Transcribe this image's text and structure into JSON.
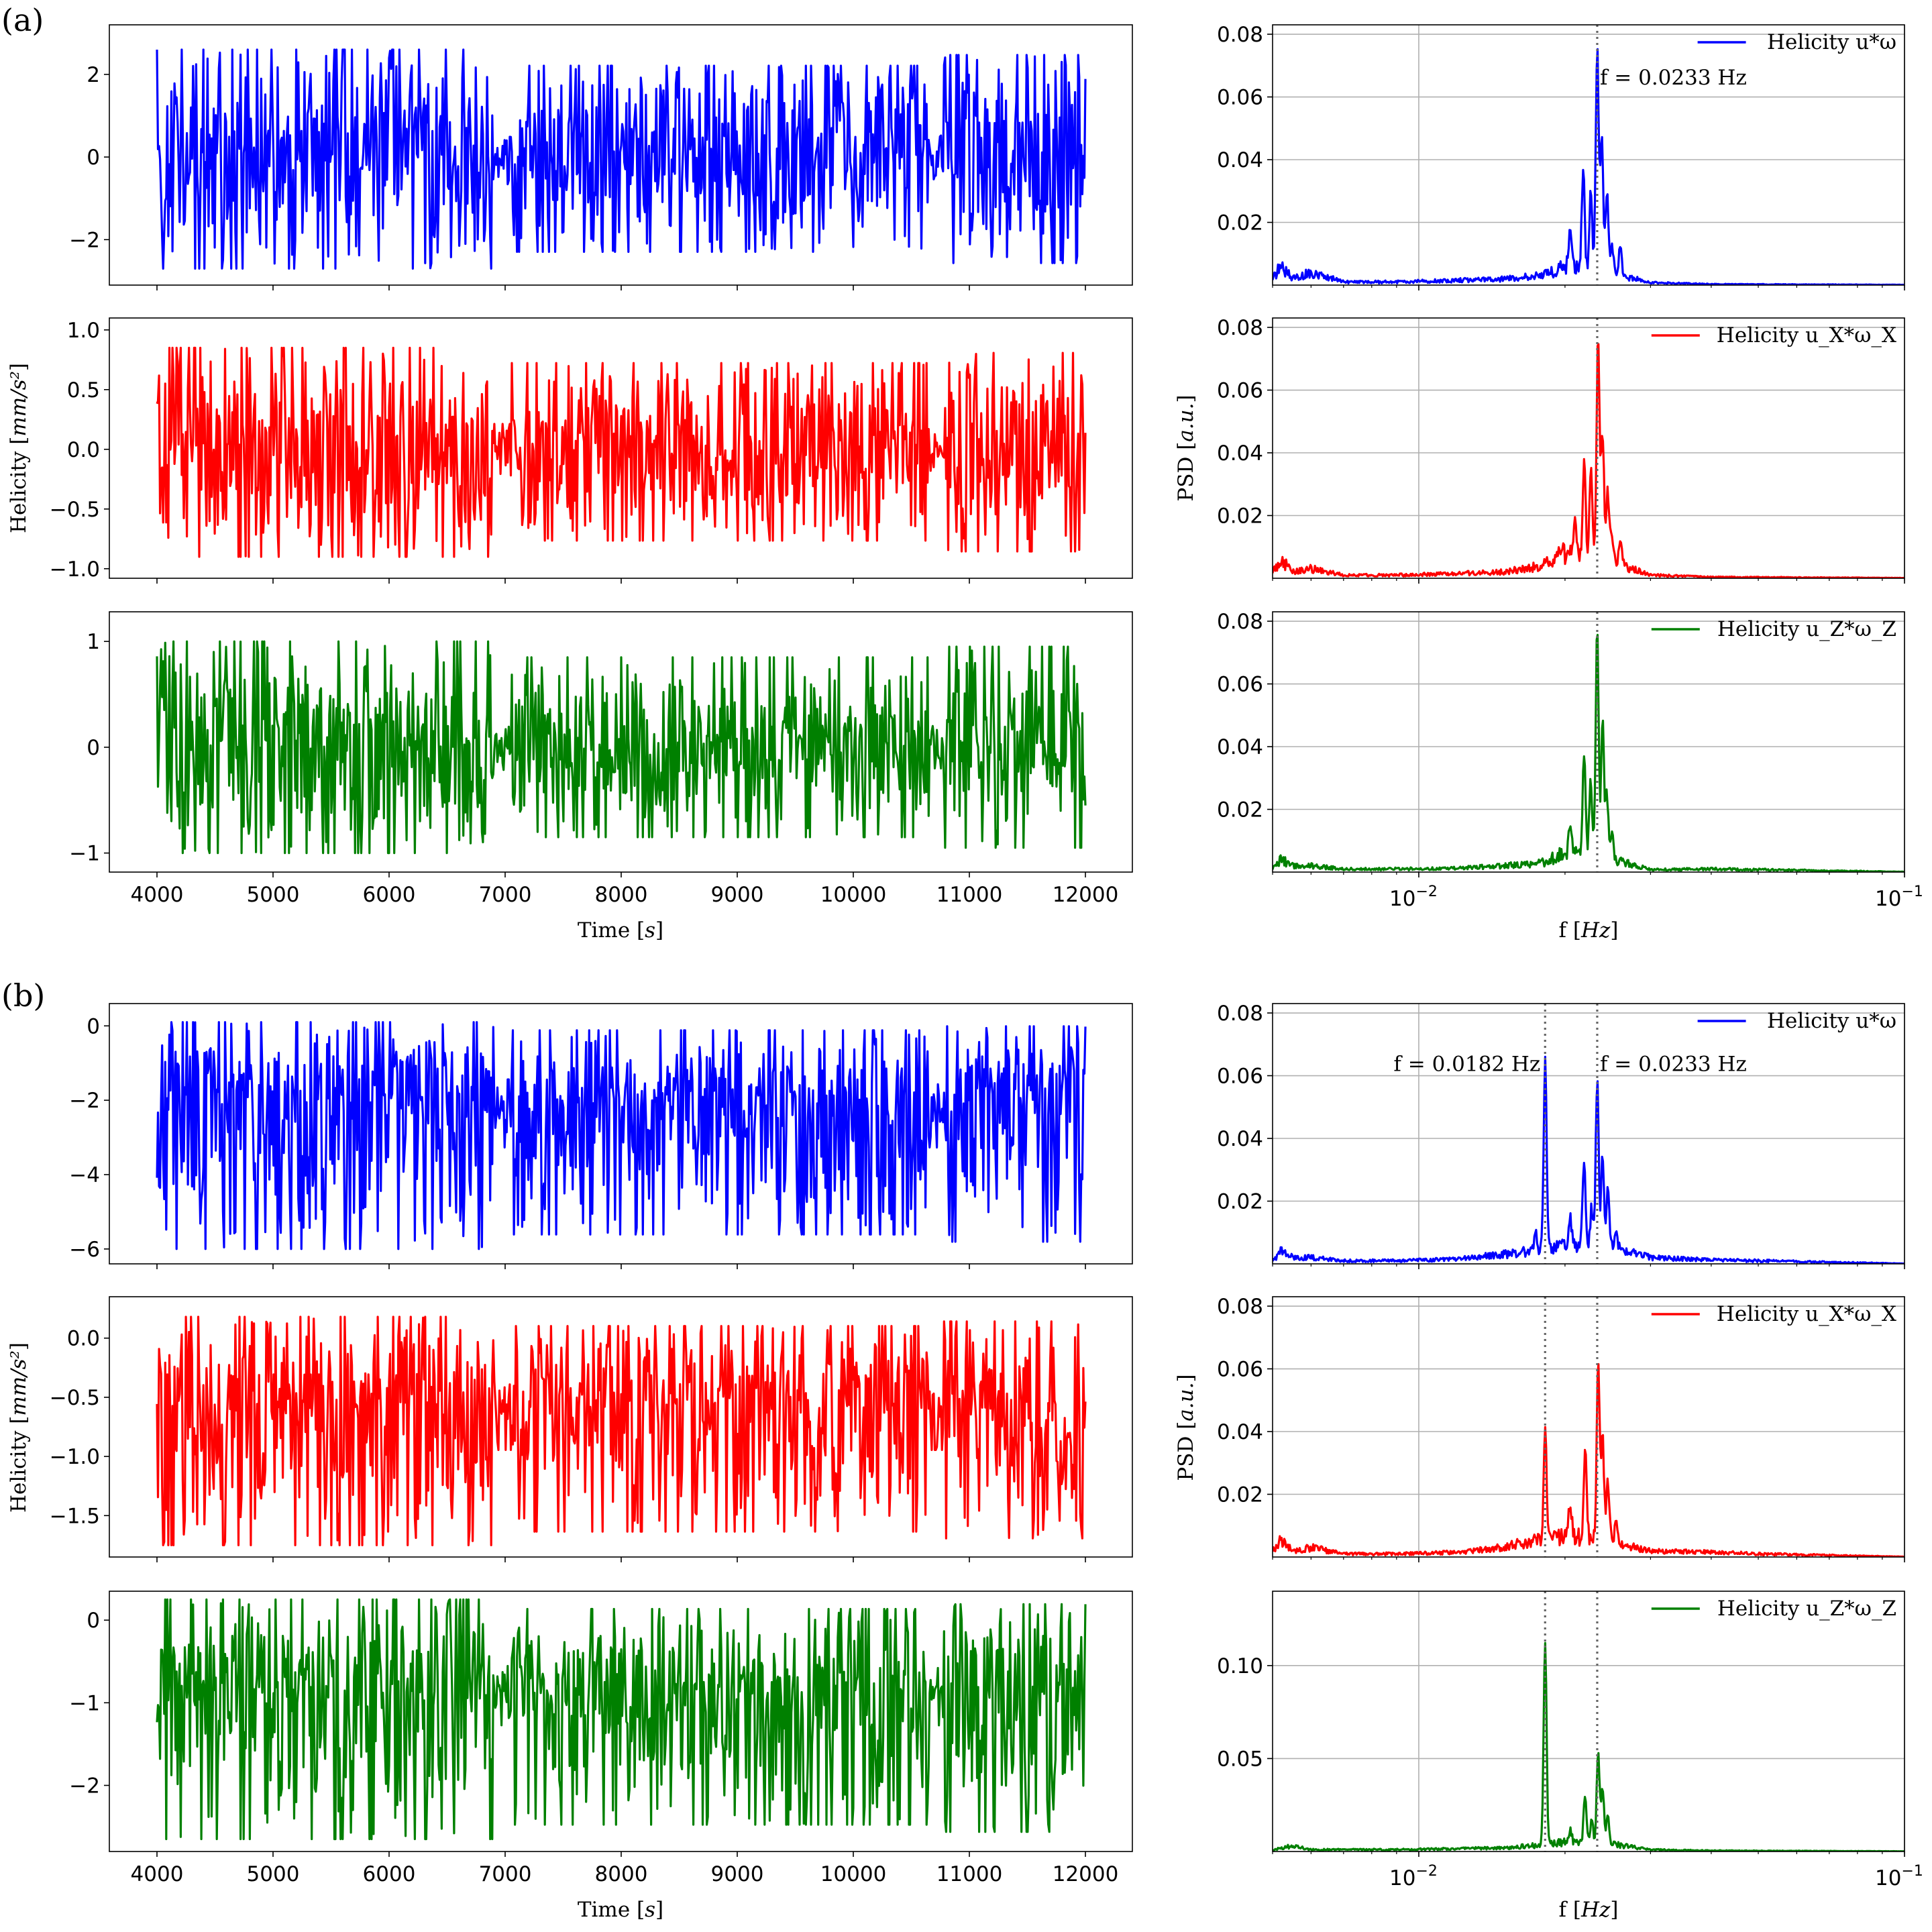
{
  "panels": [
    {
      "label": "(a)"
    },
    {
      "label": "(b)"
    }
  ],
  "time_xlabel": "Time [s]",
  "time_ylabel": "Helicity [mm/s²]",
  "freq_xlabel": "f [Hz]",
  "freq_ylabel": "PSD [a.u.]",
  "chart_data": [
    {
      "panel": "(a)",
      "kind": "time",
      "type": "line",
      "series_name": "Helicity u*ω",
      "color": "#0000ff",
      "xlim": [
        3800,
        12200
      ],
      "ylim": [
        -3.1,
        3.2
      ],
      "xticks": [
        4000,
        5000,
        6000,
        7000,
        8000,
        9000,
        10000,
        11000,
        12000
      ],
      "yticks": [
        -2,
        0,
        2
      ],
      "ytick_labels": [
        "−2",
        "0",
        "2"
      ],
      "signal": {
        "t_start": 4000,
        "t_end": 12000,
        "mean": 0.0,
        "amp_p": 2.6,
        "amp_n": 2.7,
        "seed": 11,
        "segments": [
          [
            4000,
            6900,
            1.0
          ],
          [
            6900,
            7050,
            0.25
          ],
          [
            7050,
            10650,
            0.85
          ],
          [
            10650,
            10780,
            0.2
          ],
          [
            10780,
            12000,
            0.95
          ]
        ]
      }
    },
    {
      "panel": "(a)",
      "kind": "time",
      "type": "line",
      "series_name": "Helicity u_X*ω_X",
      "color": "#ff0000",
      "xlim": [
        3800,
        12200
      ],
      "ylim": [
        -1.08,
        1.1
      ],
      "xticks": [
        4000,
        5000,
        6000,
        7000,
        8000,
        9000,
        10000,
        11000,
        12000
      ],
      "yticks": [
        -1.0,
        -0.5,
        0.0,
        0.5,
        1.0
      ],
      "ytick_labels": [
        "−1.0",
        "−0.5",
        "0.0",
        "0.5",
        "1.0"
      ],
      "signal": {
        "t_start": 4000,
        "t_end": 12000,
        "mean": 0.0,
        "amp_p": 0.85,
        "amp_n": 0.9,
        "seed": 23,
        "segments": [
          [
            4000,
            6900,
            1.0
          ],
          [
            6900,
            7050,
            0.25
          ],
          [
            7050,
            10650,
            0.85
          ],
          [
            10650,
            10780,
            0.2
          ],
          [
            10780,
            12000,
            0.95
          ]
        ]
      }
    },
    {
      "panel": "(a)",
      "kind": "time",
      "type": "line",
      "series_name": "Helicity u_Z*ω_Z",
      "color": "#008000",
      "xlim": [
        3800,
        12200
      ],
      "ylim": [
        -1.18,
        1.28
      ],
      "xticks": [
        4000,
        5000,
        6000,
        7000,
        8000,
        9000,
        10000,
        11000,
        12000
      ],
      "yticks": [
        -1,
        0,
        1
      ],
      "ytick_labels": [
        "−1",
        "0",
        "1"
      ],
      "signal": {
        "t_start": 4000,
        "t_end": 12000,
        "mean": 0.0,
        "amp_p": 1.0,
        "amp_n": 1.0,
        "seed": 37,
        "segments": [
          [
            4000,
            6900,
            1.0
          ],
          [
            6900,
            7050,
            0.25
          ],
          [
            7050,
            10650,
            0.85
          ],
          [
            10650,
            10780,
            0.2
          ],
          [
            10780,
            12000,
            0.95
          ]
        ]
      }
    },
    {
      "panel": "(a)",
      "kind": "psd",
      "type": "line",
      "series_name": "Helicity u*ω",
      "color": "#0000ff",
      "xscale": "log",
      "xlim": [
        0.005,
        0.1
      ],
      "ylim": [
        0,
        0.083
      ],
      "xticks": [
        0.01,
        0.1
      ],
      "xtick_labels": [
        "10",
        "10"
      ],
      "xtick_exponents": [
        "−2",
        "−1"
      ],
      "yticks": [
        0.02,
        0.04,
        0.06,
        0.08
      ],
      "ytick_labels": [
        "0.02",
        "0.04",
        "0.06",
        "0.08"
      ],
      "vlines": [
        0.0233
      ],
      "annotations": [
        {
          "text": "f = 0.0233 Hz",
          "x": 0.0236,
          "y": 0.064,
          "anchor": "start"
        }
      ],
      "baseline": [
        [
          0.005,
          0.002
        ],
        [
          0.0052,
          0.006
        ],
        [
          0.0055,
          0.002
        ],
        [
          0.006,
          0.004
        ],
        [
          0.007,
          0.001
        ],
        [
          0.009,
          0.001
        ],
        [
          0.012,
          0.0015
        ],
        [
          0.015,
          0.002
        ],
        [
          0.018,
          0.003
        ],
        [
          0.02,
          0.006
        ],
        [
          0.025,
          0.004
        ],
        [
          0.03,
          0.0008
        ],
        [
          0.04,
          0.0003
        ],
        [
          0.1,
          0.0001
        ]
      ],
      "peaks": [
        [
          0.0233,
          0.07
        ],
        [
          0.0238,
          0.043
        ],
        [
          0.0226,
          0.025
        ],
        [
          0.0218,
          0.031
        ],
        [
          0.0244,
          0.025
        ],
        [
          0.025,
          0.008
        ],
        [
          0.0205,
          0.012
        ],
        [
          0.026,
          0.009
        ]
      ]
    },
    {
      "panel": "(a)",
      "kind": "psd",
      "type": "line",
      "series_name": "Helicity u_X*ω_X",
      "color": "#ff0000",
      "xscale": "log",
      "xlim": [
        0.005,
        0.1
      ],
      "ylim": [
        0,
        0.083
      ],
      "xticks": [
        0.01,
        0.1
      ],
      "xtick_labels": [
        "10",
        "10"
      ],
      "xtick_exponents": [
        "−2",
        "−1"
      ],
      "yticks": [
        0.02,
        0.04,
        0.06,
        0.08
      ],
      "ytick_labels": [
        "0.02",
        "0.04",
        "0.06",
        "0.08"
      ],
      "vlines": [
        0.0233
      ],
      "annotations": [],
      "baseline": [
        [
          0.005,
          0.002
        ],
        [
          0.0052,
          0.006
        ],
        [
          0.0055,
          0.002
        ],
        [
          0.006,
          0.003
        ],
        [
          0.007,
          0.001
        ],
        [
          0.009,
          0.001
        ],
        [
          0.012,
          0.0015
        ],
        [
          0.015,
          0.002
        ],
        [
          0.018,
          0.004
        ],
        [
          0.02,
          0.008
        ],
        [
          0.025,
          0.005
        ],
        [
          0.03,
          0.001
        ],
        [
          0.04,
          0.0004
        ],
        [
          0.1,
          0.0001
        ]
      ],
      "peaks": [
        [
          0.0234,
          0.072
        ],
        [
          0.0239,
          0.04
        ],
        [
          0.0226,
          0.028
        ],
        [
          0.0219,
          0.03
        ],
        [
          0.0245,
          0.022
        ],
        [
          0.021,
          0.01
        ],
        [
          0.025,
          0.008
        ],
        [
          0.026,
          0.009
        ]
      ]
    },
    {
      "panel": "(a)",
      "kind": "psd",
      "type": "line",
      "series_name": "Helicity u_Z*ω_Z",
      "color": "#008000",
      "xscale": "log",
      "xlim": [
        0.005,
        0.1
      ],
      "ylim": [
        0,
        0.083
      ],
      "xticks": [
        0.01,
        0.1
      ],
      "xtick_labels": [
        "10",
        "10"
      ],
      "xtick_exponents": [
        "−2",
        "−1"
      ],
      "yticks": [
        0.02,
        0.04,
        0.06,
        0.08
      ],
      "ytick_labels": [
        "0.02",
        "0.04",
        "0.06",
        "0.08"
      ],
      "vlines": [
        0.0233
      ],
      "annotations": [],
      "baseline": [
        [
          0.005,
          0.001
        ],
        [
          0.0052,
          0.004
        ],
        [
          0.0055,
          0.002
        ],
        [
          0.006,
          0.002
        ],
        [
          0.007,
          0.001
        ],
        [
          0.009,
          0.001
        ],
        [
          0.012,
          0.0012
        ],
        [
          0.015,
          0.002
        ],
        [
          0.018,
          0.003
        ],
        [
          0.02,
          0.006
        ],
        [
          0.025,
          0.004
        ],
        [
          0.03,
          0.0008
        ],
        [
          0.04,
          0.001
        ],
        [
          0.1,
          0.0001
        ]
      ],
      "peaks": [
        [
          0.0233,
          0.073
        ],
        [
          0.0239,
          0.044
        ],
        [
          0.0226,
          0.024
        ],
        [
          0.0219,
          0.032
        ],
        [
          0.0244,
          0.02
        ],
        [
          0.025,
          0.01
        ],
        [
          0.0205,
          0.01
        ]
      ]
    },
    {
      "panel": "(b)",
      "kind": "time",
      "type": "line",
      "series_name": "Helicity u*ω",
      "color": "#0000ff",
      "xlim": [
        3800,
        12200
      ],
      "ylim": [
        -6.4,
        0.6
      ],
      "xticks": [
        4000,
        5000,
        6000,
        7000,
        8000,
        9000,
        10000,
        11000,
        12000
      ],
      "yticks": [
        -6,
        -4,
        -2,
        0
      ],
      "ytick_labels": [
        "−6",
        "−4",
        "−2",
        "0"
      ],
      "signal": {
        "t_start": 4000,
        "t_end": 12000,
        "mean": -2.1,
        "amp_p": 2.2,
        "amp_n": 3.9,
        "seed": 51,
        "segments": [
          [
            4000,
            6900,
            1.0
          ],
          [
            6900,
            7050,
            0.3
          ],
          [
            7050,
            10650,
            0.9
          ],
          [
            10650,
            10780,
            0.3
          ],
          [
            10780,
            12000,
            0.95
          ]
        ]
      }
    },
    {
      "panel": "(b)",
      "kind": "time",
      "type": "line",
      "series_name": "Helicity u_X*ω_X",
      "color": "#ff0000",
      "xlim": [
        3800,
        12200
      ],
      "ylim": [
        -1.85,
        0.35
      ],
      "xticks": [
        4000,
        5000,
        6000,
        7000,
        8000,
        9000,
        10000,
        11000,
        12000
      ],
      "yticks": [
        -1.5,
        -1.0,
        -0.5,
        0.0
      ],
      "ytick_labels": [
        "−1.5",
        "−1.0",
        "−0.5",
        "0.0"
      ],
      "signal": {
        "t_start": 4000,
        "t_end": 12000,
        "mean": -0.6,
        "amp_p": 0.78,
        "amp_n": 1.15,
        "seed": 67,
        "segments": [
          [
            4000,
            6900,
            1.0
          ],
          [
            6900,
            7050,
            0.3
          ],
          [
            7050,
            10650,
            0.9
          ],
          [
            10650,
            10780,
            0.3
          ],
          [
            10780,
            12000,
            0.95
          ]
        ]
      }
    },
    {
      "panel": "(b)",
      "kind": "time",
      "type": "line",
      "series_name": "Helicity u_Z*ω_Z",
      "color": "#008000",
      "xlim": [
        3800,
        12200
      ],
      "ylim": [
        -2.8,
        0.35
      ],
      "xticks": [
        4000,
        5000,
        6000,
        7000,
        8000,
        9000,
        10000,
        11000,
        12000
      ],
      "yticks": [
        -2,
        -1,
        0
      ],
      "ytick_labels": [
        "−2",
        "−1",
        "0"
      ],
      "signal": {
        "t_start": 4000,
        "t_end": 12000,
        "mean": -0.9,
        "amp_p": 1.15,
        "amp_n": 1.75,
        "seed": 83,
        "segments": [
          [
            4000,
            6900,
            1.0
          ],
          [
            6900,
            7050,
            0.3
          ],
          [
            7050,
            10650,
            0.9
          ],
          [
            10650,
            10780,
            0.3
          ],
          [
            10780,
            12000,
            0.95
          ]
        ]
      }
    },
    {
      "panel": "(b)",
      "kind": "psd",
      "type": "line",
      "series_name": "Helicity u*ω",
      "color": "#0000ff",
      "xscale": "log",
      "xlim": [
        0.005,
        0.1
      ],
      "ylim": [
        0,
        0.083
      ],
      "xticks": [
        0.01,
        0.1
      ],
      "xtick_labels": [
        "10",
        "10"
      ],
      "xtick_exponents": [
        "−2",
        "−1"
      ],
      "yticks": [
        0.02,
        0.04,
        0.06,
        0.08
      ],
      "ytick_labels": [
        "0.02",
        "0.04",
        "0.06",
        "0.08"
      ],
      "vlines": [
        0.0182,
        0.0233
      ],
      "annotations": [
        {
          "text": "f = 0.0182 Hz",
          "x": 0.0178,
          "y": 0.0615,
          "anchor": "end"
        },
        {
          "text": "f = 0.0233 Hz",
          "x": 0.0236,
          "y": 0.0615,
          "anchor": "start"
        }
      ],
      "baseline": [
        [
          0.005,
          0.001
        ],
        [
          0.0052,
          0.004
        ],
        [
          0.0055,
          0.002
        ],
        [
          0.006,
          0.002
        ],
        [
          0.007,
          0.001
        ],
        [
          0.009,
          0.001
        ],
        [
          0.012,
          0.0015
        ],
        [
          0.015,
          0.003
        ],
        [
          0.017,
          0.004
        ],
        [
          0.02,
          0.006
        ],
        [
          0.025,
          0.005
        ],
        [
          0.03,
          0.002
        ],
        [
          0.04,
          0.0012
        ],
        [
          0.05,
          0.001
        ],
        [
          0.1,
          0.0001
        ]
      ],
      "peaks": [
        [
          0.0182,
          0.06
        ],
        [
          0.0233,
          0.054
        ],
        [
          0.0239,
          0.029
        ],
        [
          0.0219,
          0.027
        ],
        [
          0.0227,
          0.012
        ],
        [
          0.0245,
          0.02
        ],
        [
          0.0255,
          0.006
        ],
        [
          0.0205,
          0.008
        ],
        [
          0.0174,
          0.005
        ]
      ]
    },
    {
      "panel": "(b)",
      "kind": "psd",
      "type": "line",
      "series_name": "Helicity u_X*ω_X",
      "color": "#ff0000",
      "xscale": "log",
      "xlim": [
        0.005,
        0.1
      ],
      "ylim": [
        0,
        0.083
      ],
      "xticks": [
        0.01,
        0.1
      ],
      "xtick_labels": [
        "10",
        "10"
      ],
      "xtick_exponents": [
        "−2",
        "−1"
      ],
      "yticks": [
        0.02,
        0.04,
        0.06,
        0.08
      ],
      "ytick_labels": [
        "0.02",
        "0.04",
        "0.06",
        "0.08"
      ],
      "vlines": [
        0.0182,
        0.0233
      ],
      "annotations": [],
      "baseline": [
        [
          0.005,
          0.002
        ],
        [
          0.0052,
          0.005
        ],
        [
          0.0055,
          0.002
        ],
        [
          0.006,
          0.003
        ],
        [
          0.007,
          0.001
        ],
        [
          0.009,
          0.001
        ],
        [
          0.012,
          0.0015
        ],
        [
          0.015,
          0.003
        ],
        [
          0.017,
          0.005
        ],
        [
          0.02,
          0.007
        ],
        [
          0.025,
          0.005
        ],
        [
          0.03,
          0.002
        ],
        [
          0.04,
          0.0015
        ],
        [
          0.05,
          0.001
        ],
        [
          0.1,
          0.0001
        ]
      ],
      "peaks": [
        [
          0.0182,
          0.036
        ],
        [
          0.0234,
          0.057
        ],
        [
          0.0239,
          0.033
        ],
        [
          0.022,
          0.028
        ],
        [
          0.0245,
          0.02
        ],
        [
          0.0205,
          0.01
        ],
        [
          0.0255,
          0.007
        ]
      ]
    },
    {
      "panel": "(b)",
      "kind": "psd",
      "type": "line",
      "series_name": "Helicity u_Z*ω_Z",
      "color": "#008000",
      "xscale": "log",
      "xlim": [
        0.005,
        0.1
      ],
      "ylim": [
        0,
        0.14
      ],
      "xticks": [
        0.01,
        0.1
      ],
      "xtick_labels": [
        "10",
        "10"
      ],
      "xtick_exponents": [
        "−2",
        "−1"
      ],
      "yticks": [
        0.05,
        0.1
      ],
      "ytick_labels": [
        "0.05",
        "0.10"
      ],
      "vlines": [
        0.0182,
        0.0233
      ],
      "annotations": [],
      "baseline": [
        [
          0.005,
          0.001
        ],
        [
          0.0055,
          0.003
        ],
        [
          0.006,
          0.001
        ],
        [
          0.009,
          0.001
        ],
        [
          0.012,
          0.0015
        ],
        [
          0.015,
          0.002
        ],
        [
          0.017,
          0.003
        ],
        [
          0.02,
          0.005
        ],
        [
          0.025,
          0.004
        ],
        [
          0.03,
          0.001
        ],
        [
          0.04,
          0.0005
        ],
        [
          0.1,
          0.0001
        ]
      ],
      "peaks": [
        [
          0.0182,
          0.11
        ],
        [
          0.0234,
          0.05
        ],
        [
          0.0239,
          0.03
        ],
        [
          0.022,
          0.025
        ],
        [
          0.0227,
          0.012
        ],
        [
          0.0245,
          0.015
        ],
        [
          0.0205,
          0.007
        ]
      ]
    }
  ]
}
